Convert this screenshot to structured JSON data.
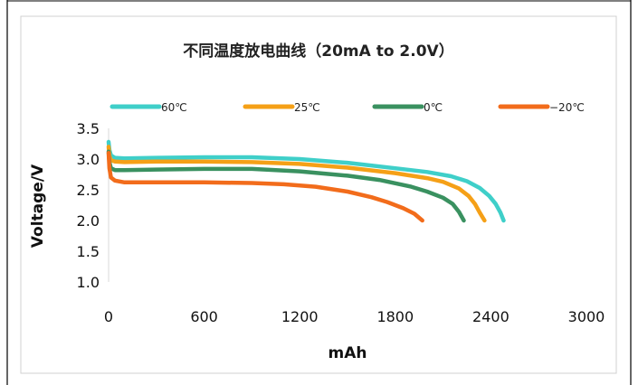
{
  "chart_data": {
    "type": "line",
    "title": "不同温度放电曲线（20mA to 2.0V）",
    "xlabel": "mAh",
    "ylabel": "Voltage/V",
    "xlim": [
      0,
      3000
    ],
    "ylim": [
      1.0,
      3.5
    ],
    "x_ticks": [
      "0",
      "600",
      "1200",
      "1800",
      "2400",
      "3000"
    ],
    "y_ticks": [
      "1.0",
      "1.5",
      "2.0",
      "2.5",
      "3.0",
      "3.5"
    ],
    "grid": false,
    "legend_position": "top",
    "series": [
      {
        "name": "60℃",
        "color": "#3fcfc9",
        "points": [
          [
            0,
            3.28
          ],
          [
            5,
            3.15
          ],
          [
            15,
            3.06
          ],
          [
            40,
            3.02
          ],
          [
            100,
            3.01
          ],
          [
            300,
            3.02
          ],
          [
            600,
            3.03
          ],
          [
            900,
            3.03
          ],
          [
            1200,
            3.0
          ],
          [
            1500,
            2.94
          ],
          [
            1800,
            2.85
          ],
          [
            2000,
            2.79
          ],
          [
            2150,
            2.72
          ],
          [
            2250,
            2.64
          ],
          [
            2330,
            2.53
          ],
          [
            2390,
            2.4
          ],
          [
            2430,
            2.27
          ],
          [
            2460,
            2.13
          ],
          [
            2480,
            2.0
          ]
        ]
      },
      {
        "name": "25℃",
        "color": "#f5a017",
        "points": [
          [
            0,
            3.2
          ],
          [
            5,
            3.05
          ],
          [
            15,
            2.98
          ],
          [
            40,
            2.96
          ],
          [
            100,
            2.95
          ],
          [
            300,
            2.96
          ],
          [
            600,
            2.96
          ],
          [
            900,
            2.95
          ],
          [
            1200,
            2.92
          ],
          [
            1500,
            2.86
          ],
          [
            1800,
            2.77
          ],
          [
            2000,
            2.69
          ],
          [
            2100,
            2.63
          ],
          [
            2200,
            2.52
          ],
          [
            2260,
            2.4
          ],
          [
            2300,
            2.27
          ],
          [
            2330,
            2.13
          ],
          [
            2360,
            2.0
          ]
        ]
      },
      {
        "name": "0℃",
        "color": "#3a9160",
        "points": [
          [
            0,
            3.12
          ],
          [
            5,
            2.95
          ],
          [
            15,
            2.85
          ],
          [
            40,
            2.82
          ],
          [
            100,
            2.82
          ],
          [
            300,
            2.83
          ],
          [
            600,
            2.84
          ],
          [
            900,
            2.84
          ],
          [
            1200,
            2.8
          ],
          [
            1500,
            2.73
          ],
          [
            1700,
            2.66
          ],
          [
            1900,
            2.55
          ],
          [
            2000,
            2.47
          ],
          [
            2100,
            2.37
          ],
          [
            2160,
            2.27
          ],
          [
            2200,
            2.14
          ],
          [
            2230,
            2.0
          ]
        ]
      },
      {
        "name": "−20℃",
        "color": "#f26c1b",
        "points": [
          [
            0,
            3.1
          ],
          [
            5,
            2.85
          ],
          [
            15,
            2.7
          ],
          [
            40,
            2.65
          ],
          [
            100,
            2.62
          ],
          [
            300,
            2.62
          ],
          [
            600,
            2.62
          ],
          [
            900,
            2.61
          ],
          [
            1100,
            2.59
          ],
          [
            1300,
            2.55
          ],
          [
            1500,
            2.47
          ],
          [
            1650,
            2.38
          ],
          [
            1750,
            2.3
          ],
          [
            1850,
            2.2
          ],
          [
            1920,
            2.11
          ],
          [
            1970,
            2.0
          ]
        ]
      }
    ]
  }
}
